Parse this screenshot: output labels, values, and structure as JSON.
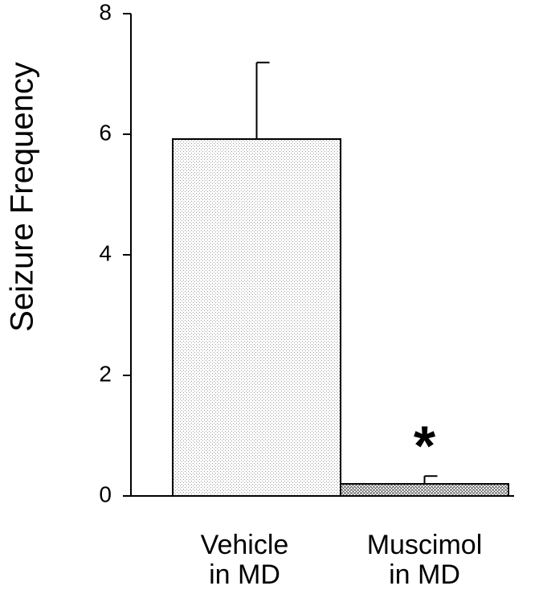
{
  "chart_data": {
    "type": "bar",
    "y_label": "Seizure Frequency",
    "categories": [
      "Vehicle\nin MD",
      "Muscimol\nin MD"
    ],
    "values": [
      5.92,
      0.2
    ],
    "errors": [
      1.27,
      0.13
    ],
    "colors": [
      "#9a9a9a",
      "#333333"
    ],
    "annotations": [
      {
        "text": "*",
        "category": 1
      }
    ],
    "ylim": [
      0,
      8
    ],
    "yticks": [
      0,
      2,
      4,
      6,
      8
    ]
  }
}
